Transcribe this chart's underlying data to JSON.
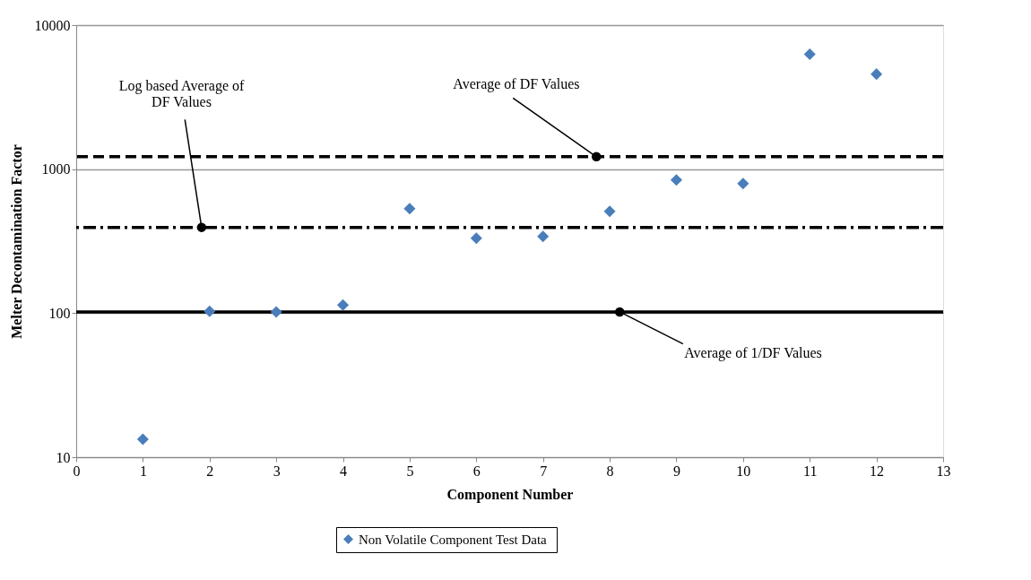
{
  "chart_data": {
    "type": "scatter",
    "xlabel": "Component Number",
    "ylabel": "Melter Decontamination Factor",
    "x": [
      1,
      2,
      3,
      4,
      5,
      6,
      7,
      8,
      9,
      10,
      11,
      12
    ],
    "series": [
      {
        "name": "Non Volatile  Component Test Data",
        "color": "#4a7ebb",
        "values": [
          13.3,
          103,
          102,
          114,
          532,
          331,
          341,
          509,
          841,
          794,
          6270,
          4570
        ]
      }
    ],
    "xlim": [
      0,
      13
    ],
    "xticks": [
      0,
      1,
      2,
      3,
      4,
      5,
      6,
      7,
      8,
      9,
      10,
      11,
      12,
      13
    ],
    "ylim": [
      10,
      10000
    ],
    "yticks": [
      10,
      100,
      1000,
      10000
    ],
    "log": "y",
    "grid": "y",
    "legend": "bottom",
    "marker": "diamond",
    "ref_lines": [
      {
        "axis": "y",
        "value": 1220,
        "color": "#000000",
        "line_style": "dashed"
      },
      {
        "axis": "y",
        "value": 394,
        "color": "#000000",
        "line_style": "dashdot"
      },
      {
        "axis": "y",
        "value": 102,
        "color": "#000000",
        "line_style": "solid"
      }
    ],
    "annotations": [
      {
        "text": "Log based Average of\nDF Values",
        "x": 1.88,
        "y": 394
      },
      {
        "text": "Average of DF Values",
        "x": 7.8,
        "y": 1220
      },
      {
        "text": "Average of 1/DF Values",
        "x": 8.15,
        "y": 102
      }
    ]
  }
}
